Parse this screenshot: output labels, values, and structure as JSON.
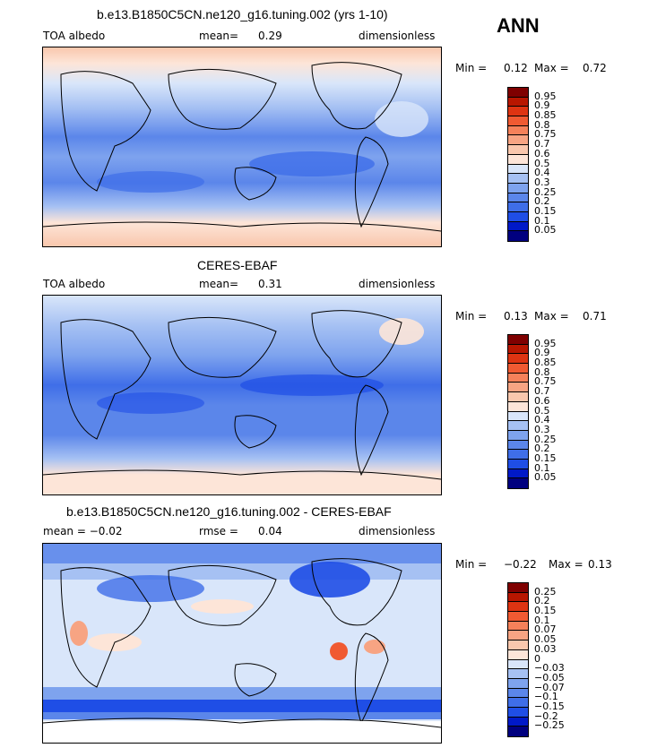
{
  "season": "ANN",
  "colors": {
    "abs_scale": [
      "#00007f",
      "#0019c8",
      "#1f4ee6",
      "#3f6ee8",
      "#5b86ea",
      "#7ea3ee",
      "#a6c1f3",
      "#d9e6fa",
      "#fde5d8",
      "#f9c7ad",
      "#f7a483",
      "#f5815a",
      "#f05a32",
      "#de3412",
      "#b81600",
      "#7f0000"
    ],
    "diff_scale": [
      "#00007f",
      "#0019c8",
      "#1f4ee6",
      "#3f6ee8",
      "#5b86ea",
      "#7ea3ee",
      "#a6c1f3",
      "#d9e6fa",
      "#fde5d8",
      "#f9c7ad",
      "#f7a483",
      "#f5815a",
      "#f05a32",
      "#de3412",
      "#b81600",
      "#7f0000"
    ]
  },
  "panels": [
    {
      "title": "b.e13.B1850C5CN.ne120_g16.tuning.002 (yrs 1-10)",
      "left": "TOA albedo",
      "center_label": "mean=",
      "center_value": "0.29",
      "right": "dimensionless",
      "min_label": "Min =",
      "min_value": "0.12",
      "max_label": "Max =",
      "max_value": "0.72",
      "ticks": [
        "0.95",
        "0.9",
        "0.85",
        "0.8",
        "0.75",
        "0.7",
        "0.6",
        "0.5",
        "0.4",
        "0.3",
        "0.25",
        "0.2",
        "0.15",
        "0.1",
        "0.05"
      ]
    },
    {
      "title": "CERES-EBAF",
      "left": "TOA albedo",
      "center_label": "mean=",
      "center_value": "0.31",
      "right": "dimensionless",
      "min_label": "Min =",
      "min_value": "0.13",
      "max_label": "Max =",
      "max_value": "0.71",
      "ticks": [
        "0.95",
        "0.9",
        "0.85",
        "0.8",
        "0.75",
        "0.7",
        "0.6",
        "0.5",
        "0.4",
        "0.3",
        "0.25",
        "0.2",
        "0.15",
        "0.1",
        "0.05"
      ]
    },
    {
      "title": "b.e13.B1850C5CN.ne120_g16.tuning.002 - CERES-EBAF",
      "left": "mean = −0.02",
      "center_label": "rmse =",
      "center_value": "0.04",
      "right": "dimensionless",
      "min_label": "Min =",
      "min_value": "−0.22",
      "max_label": "Max =",
      "max_value": "0.13",
      "ticks": [
        "0.25",
        "0.2",
        "0.15",
        "0.1",
        "0.07",
        "0.05",
        "0.03",
        "0",
        "−0.03",
        "−0.05",
        "−0.07",
        "−0.1",
        "−0.15",
        "−0.2",
        "−0.25"
      ]
    }
  ]
}
